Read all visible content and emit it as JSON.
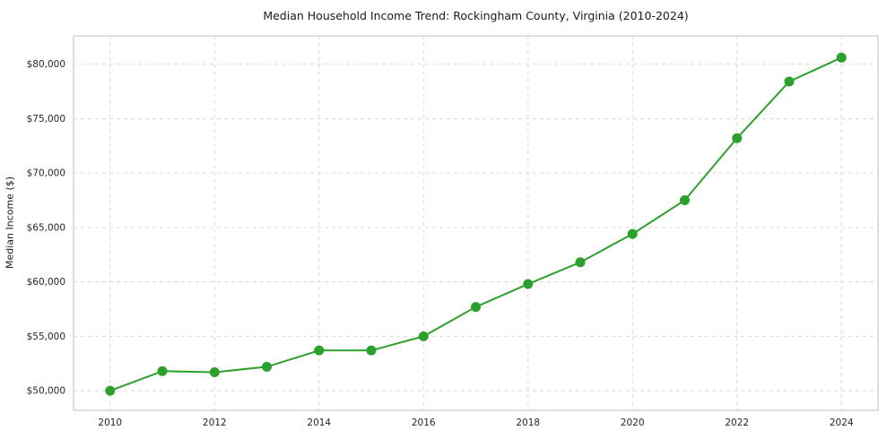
{
  "chart_data": {
    "type": "line",
    "title": "Median Household Income Trend: Rockingham County, Virginia (2010-2024)",
    "xlabel": "",
    "ylabel": "Median Income ($)",
    "x": [
      2010,
      2011,
      2012,
      2013,
      2014,
      2015,
      2016,
      2017,
      2018,
      2019,
      2020,
      2021,
      2022,
      2023,
      2024
    ],
    "y": [
      50000,
      51800,
      51700,
      52200,
      53700,
      53700,
      55000,
      57700,
      59800,
      61800,
      64400,
      67500,
      73200,
      78400,
      80600
    ],
    "series_name": "Median Household Income",
    "line_color": "#2ca02c",
    "marker": "circle",
    "marker_color": "#2ca02c",
    "grid": true,
    "grid_style": "dashed",
    "legend": "none",
    "xticks": [
      2010,
      2012,
      2014,
      2016,
      2018,
      2020,
      2022,
      2024
    ],
    "xtick_labels": [
      "2010",
      "2012",
      "2014",
      "2016",
      "2018",
      "2020",
      "2022",
      "2024"
    ],
    "yticks": [
      50000,
      55000,
      60000,
      65000,
      70000,
      75000,
      80000
    ],
    "ytick_labels": [
      "$50,000",
      "$55,000",
      "$60,000",
      "$65,000",
      "$70,000",
      "$75,000",
      "$80,000"
    ],
    "xlim": [
      2009.3,
      2024.7
    ],
    "ylim": [
      48200,
      82600
    ],
    "colors": {
      "line": "#2ca02c",
      "grid": "#d9d9d9",
      "axis_border": "#c8c8c8",
      "tick_text": "#262626",
      "background": "#ffffff"
    }
  }
}
